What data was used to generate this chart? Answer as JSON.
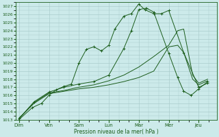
{
  "xlabel": "Pression niveau de la mer( hPa )",
  "bg_color": "#cceaea",
  "grid_color": "#aacccc",
  "line_color": "#1a5c1a",
  "ylim": [
    1013,
    1027.5
  ],
  "yticks": [
    1013,
    1014,
    1015,
    1016,
    1017,
    1018,
    1019,
    1020,
    1021,
    1022,
    1023,
    1024,
    1025,
    1026,
    1027
  ],
  "day_labels": [
    "Dim",
    "Ven",
    "Sam",
    "Lun",
    "Mar",
    "Mer",
    "Jeu"
  ],
  "day_positions": [
    0,
    1,
    2,
    3,
    4,
    5,
    6
  ],
  "xlim": [
    -0.1,
    6.6
  ],
  "lines": [
    {
      "x": [
        0.0,
        0.45,
        0.75,
        1.0,
        1.25,
        1.5,
        1.75,
        2.0,
        2.25,
        2.5,
        2.75,
        3.0,
        3.2,
        3.5,
        3.75,
        4.0,
        4.2,
        4.5,
        4.75,
        5.0,
        5.5,
        6.0,
        6.3
      ],
      "y": [
        1013.0,
        1014.5,
        1015.0,
        1016.0,
        1016.7,
        1017.1,
        1017.4,
        1020.0,
        1021.7,
        1022.0,
        1021.5,
        1022.2,
        1024.2,
        1025.8,
        1026.1,
        1027.3,
        1026.6,
        1026.1,
        1026.1,
        1026.5,
        1021.3,
        1017.0,
        1017.5
      ],
      "marker": "+"
    },
    {
      "x": [
        0.0,
        0.5,
        1.0,
        1.5,
        2.0,
        2.5,
        3.0,
        3.5,
        4.0,
        4.5,
        5.0,
        5.3,
        5.5,
        5.8,
        6.0,
        6.3
      ],
      "y": [
        1013.2,
        1015.0,
        1016.2,
        1016.5,
        1016.8,
        1017.0,
        1017.3,
        1017.7,
        1018.2,
        1019.0,
        1022.0,
        1022.2,
        1021.3,
        1018.0,
        1017.3,
        1017.8
      ],
      "marker": null
    },
    {
      "x": [
        0.0,
        0.5,
        1.0,
        1.5,
        2.0,
        2.5,
        3.0,
        3.5,
        4.0,
        4.5,
        5.0,
        5.3,
        5.5,
        5.8,
        6.0,
        6.3
      ],
      "y": [
        1013.1,
        1015.1,
        1016.3,
        1016.6,
        1017.0,
        1017.3,
        1017.8,
        1018.5,
        1019.5,
        1020.8,
        1022.2,
        1024.0,
        1024.2,
        1018.5,
        1017.5,
        1018.0
      ],
      "marker": null
    },
    {
      "x": [
        0.0,
        0.5,
        1.0,
        1.5,
        2.0,
        2.5,
        3.0,
        3.5,
        3.75,
        4.0,
        4.25,
        4.5,
        5.0,
        5.3,
        5.5,
        5.75,
        6.0,
        6.3
      ],
      "y": [
        1013.1,
        1015.2,
        1016.4,
        1017.0,
        1017.4,
        1017.7,
        1018.5,
        1021.8,
        1024.0,
        1026.6,
        1026.8,
        1026.3,
        1021.2,
        1018.2,
        1016.5,
        1016.0,
        1016.8,
        1017.7
      ],
      "marker": "+"
    }
  ]
}
